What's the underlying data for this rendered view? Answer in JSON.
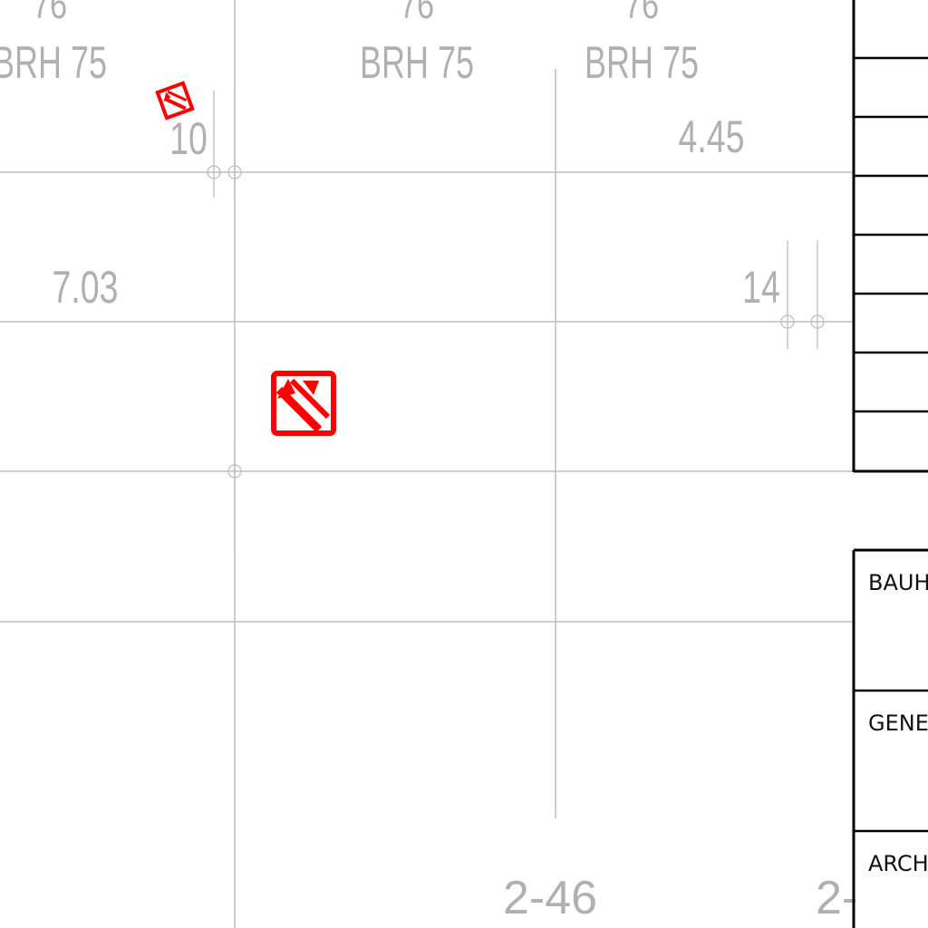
{
  "dimensions": {
    "top_labels": [
      "76",
      "76",
      "76"
    ],
    "brh_labels": [
      "BRH 75",
      "BRH 75",
      "BRH 75"
    ],
    "value_10": "10",
    "value_4_45": "4.45",
    "value_7_03": "7.03",
    "value_14": "14",
    "sheet_ref_1": "2-46",
    "sheet_ref_2": "2-"
  },
  "title_block": {
    "label_1": "BAUH",
    "label_2": "GENE",
    "label_3": "ARCH"
  },
  "colors": {
    "grid": "#bdbdbd",
    "dim_text": "#b0b0b0",
    "symbol": "#ff0000",
    "frame": "#000000"
  },
  "symbols": [
    "fire-extinguisher-icon",
    "fire-extinguisher-icon"
  ]
}
